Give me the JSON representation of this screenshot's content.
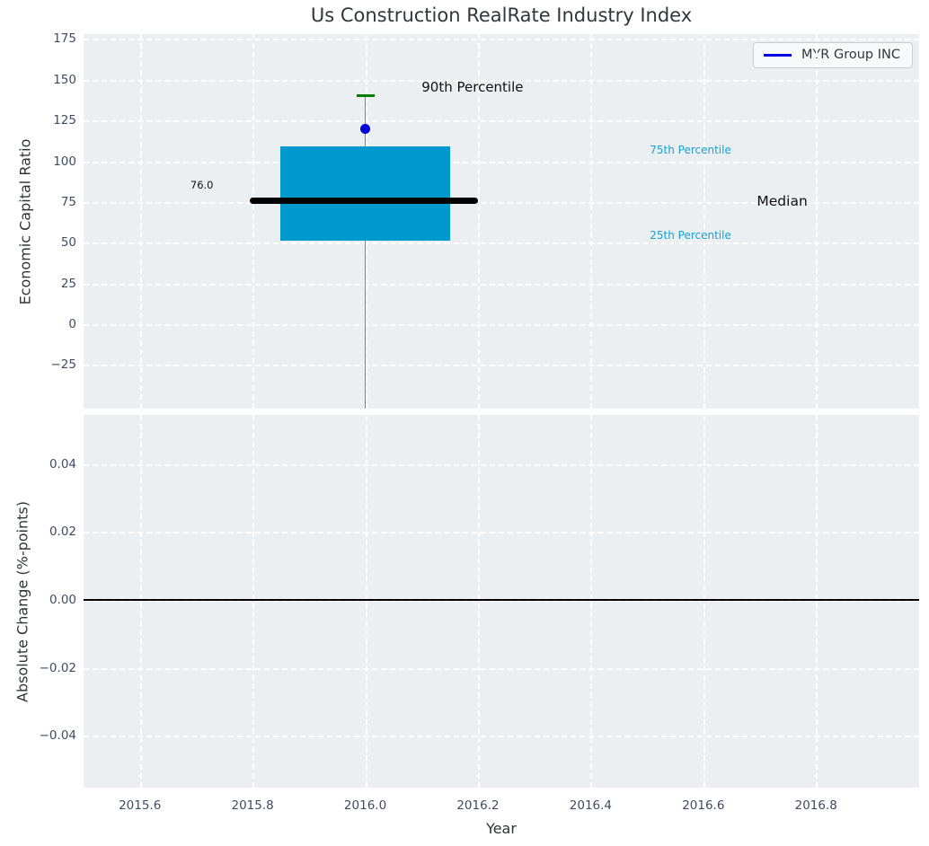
{
  "title": "Us Construction RealRate Industry Index",
  "legend": {
    "label": "MYR Group INC",
    "line_color": "#0000e0"
  },
  "colors": {
    "axes_bg": "#ebeff1",
    "grid": "rgba(255,255,255,0.92)",
    "box_fill": "#0099cd",
    "median_line": "#000000",
    "whisker": "#808080",
    "cap_green": "#008000",
    "point_blue": "#0000dc",
    "tick_label": "#3d4c63",
    "text_dark": "#111111",
    "percentile_text": "#1a9fd0"
  },
  "chart_data": [
    {
      "type": "box",
      "title": "Us Construction RealRate Industry Index",
      "ylabel": "Economic Capital Ratio",
      "xlabel": "",
      "xlim": [
        2015.5,
        2016.983
      ],
      "ylim": [
        -51.8,
        178
      ],
      "yticks": [
        175,
        150,
        125,
        100,
        75,
        50,
        25,
        0,
        -25
      ],
      "ytick_labels": [
        "175",
        "150",
        "125",
        "100",
        "75",
        "50",
        "25",
        "0",
        "−25"
      ],
      "xgrid_at": [
        2015.6,
        2015.8,
        2016.0,
        2016.2,
        2016.4,
        2016.6,
        2016.8
      ],
      "grid": true,
      "legend_position": "upper right",
      "series": [
        {
          "name": "MYR Group INC",
          "x": 2016.0,
          "median": 76.0,
          "q1": 51,
          "q3": 109,
          "p90": 140,
          "marker_value": 120,
          "lower_whisker_clipped_at_axis_bottom": true,
          "box_x_range": [
            2015.85,
            2016.15
          ],
          "median_x_range": [
            2015.795,
            2016.2
          ],
          "cap_x_range": [
            2015.984,
            2016.016
          ]
        }
      ],
      "annotations": [
        {
          "text": "90th Percentile",
          "x": 2016.1,
          "y": 145.5,
          "color": "#111111",
          "size": 15,
          "align": "left"
        },
        {
          "text": "75th Percentile",
          "x": 2016.505,
          "y": 107,
          "color": "#1a9fd0",
          "size": 12,
          "align": "left"
        },
        {
          "text": "Median",
          "x": 2016.695,
          "y": 75.5,
          "color": "#111111",
          "size": 15.5,
          "align": "left"
        },
        {
          "text": "25th Percentile",
          "x": 2016.505,
          "y": 54.5,
          "color": "#1a9fd0",
          "size": 12,
          "align": "left"
        },
        {
          "text": "76.0",
          "x": 2015.71,
          "y": 85.5,
          "color": "#111111",
          "size": 11.5,
          "align": "center"
        }
      ]
    },
    {
      "type": "line",
      "ylabel": "Absolute Change (%-points)",
      "xlabel": "Year",
      "xlim": [
        2015.5,
        2016.983
      ],
      "ylim": [
        -0.0552,
        0.0544
      ],
      "yticks": [
        0.04,
        0.02,
        0.0,
        -0.02,
        -0.04
      ],
      "ytick_labels": [
        "0.04",
        "0.02",
        "0.00",
        "−0.02",
        "−0.04"
      ],
      "xticks": [
        2015.6,
        2015.8,
        2016.0,
        2016.2,
        2016.4,
        2016.6,
        2016.8
      ],
      "xtick_labels": [
        "2015.6",
        "2015.8",
        "2016.0",
        "2016.2",
        "2016.4",
        "2016.6",
        "2016.8"
      ],
      "xgrid_at": [
        2015.6,
        2015.8,
        2016.0,
        2016.2,
        2016.4,
        2016.6,
        2016.8
      ],
      "zero_line": 0.0,
      "grid": true
    }
  ]
}
